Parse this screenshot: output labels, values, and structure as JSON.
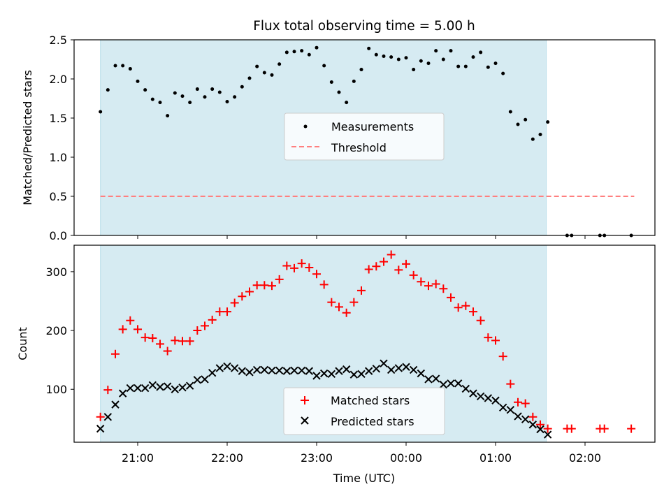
{
  "chart_data": [
    {
      "type": "scatter",
      "title": "Flux total observing time = 5.00 h",
      "ylabel": "Matched/Predicted stars",
      "ylim": [
        0,
        2.5
      ],
      "yticks": [
        "0.0",
        "0.5",
        "1.0",
        "1.5",
        "2.0",
        "2.5"
      ],
      "shaded_span": {
        "start": "20:35",
        "end": "01:34",
        "color": "#add8e6"
      },
      "threshold": {
        "name": "Threshold",
        "value": 0.5,
        "x_start": "20:35",
        "x_end": "02:33",
        "color": "#ff7f7f",
        "style": "dashed"
      },
      "legend": {
        "position": "center",
        "entries": [
          "Measurements",
          "Threshold"
        ]
      },
      "series": [
        {
          "name": "Measurements",
          "color": "#000000",
          "marker": "dot",
          "x": [
            "20:35",
            "20:40",
            "20:45",
            "20:50",
            "20:55",
            "21:00",
            "21:05",
            "21:10",
            "21:15",
            "21:20",
            "21:25",
            "21:30",
            "21:35",
            "21:40",
            "21:45",
            "21:50",
            "21:55",
            "22:00",
            "22:05",
            "22:10",
            "22:15",
            "22:20",
            "22:25",
            "22:30",
            "22:35",
            "22:40",
            "22:45",
            "22:50",
            "22:55",
            "23:00",
            "23:05",
            "23:10",
            "23:15",
            "23:20",
            "23:25",
            "23:30",
            "23:35",
            "23:40",
            "23:45",
            "23:50",
            "23:55",
            "00:00",
            "00:05",
            "00:10",
            "00:15",
            "00:20",
            "00:25",
            "00:30",
            "00:35",
            "00:40",
            "00:45",
            "00:50",
            "00:55",
            "01:00",
            "01:05",
            "01:10",
            "01:15",
            "01:20",
            "01:25",
            "01:30",
            "01:35",
            "01:48",
            "01:51",
            "02:10",
            "02:13",
            "02:31"
          ],
          "y": [
            1.58,
            1.86,
            2.17,
            2.17,
            2.13,
            1.97,
            1.86,
            1.74,
            1.7,
            1.53,
            1.82,
            1.78,
            1.7,
            1.87,
            1.77,
            1.87,
            1.83,
            1.71,
            1.77,
            1.9,
            2.01,
            2.16,
            2.08,
            2.05,
            2.19,
            2.34,
            2.35,
            2.36,
            2.31,
            2.4,
            2.17,
            1.96,
            1.83,
            1.7,
            1.97,
            2.12,
            2.39,
            2.31,
            2.29,
            2.28,
            2.25,
            2.27,
            2.12,
            2.23,
            2.2,
            2.36,
            2.25,
            2.36,
            2.16,
            2.16,
            2.28,
            2.34,
            2.15,
            2.2,
            2.07,
            1.58,
            1.42,
            1.48,
            1.23,
            1.29,
            1.45,
            0,
            0,
            0,
            0,
            0
          ]
        }
      ]
    },
    {
      "type": "scatter",
      "xlabel": "Time (UTC)",
      "ylabel": "Count",
      "ylim": [
        10,
        345
      ],
      "yticks": [
        "100",
        "200",
        "300"
      ],
      "xticks": [
        "21:00",
        "22:00",
        "23:00",
        "00:00",
        "01:00",
        "02:00"
      ],
      "shaded_span": {
        "start": "20:35",
        "end": "01:34",
        "color": "#add8e6"
      },
      "legend": {
        "position": "lower center",
        "entries": [
          "Matched stars",
          "Predicted stars"
        ]
      },
      "x": [
        "20:35",
        "20:40",
        "20:45",
        "20:50",
        "20:55",
        "21:00",
        "21:05",
        "21:10",
        "21:15",
        "21:20",
        "21:25",
        "21:30",
        "21:35",
        "21:40",
        "21:45",
        "21:50",
        "21:55",
        "22:00",
        "22:05",
        "22:10",
        "22:15",
        "22:20",
        "22:25",
        "22:30",
        "22:35",
        "22:40",
        "22:45",
        "22:50",
        "22:55",
        "23:00",
        "23:05",
        "23:10",
        "23:15",
        "23:20",
        "23:25",
        "23:30",
        "23:35",
        "23:40",
        "23:45",
        "23:50",
        "23:55",
        "00:00",
        "00:05",
        "00:10",
        "00:15",
        "00:20",
        "00:25",
        "00:30",
        "00:35",
        "00:40",
        "00:45",
        "00:50",
        "00:55",
        "01:00",
        "01:05",
        "01:10",
        "01:15",
        "01:20",
        "01:25",
        "01:30",
        "01:35",
        "01:48",
        "01:51",
        "02:10",
        "02:13",
        "02:31"
      ],
      "series": [
        {
          "name": "Matched stars",
          "color": "#ff0000",
          "marker": "plus",
          "values": [
            53,
            99,
            160,
            202,
            217,
            202,
            188,
            187,
            177,
            165,
            183,
            182,
            182,
            200,
            208,
            218,
            232,
            232,
            247,
            258,
            266,
            277,
            277,
            276,
            287,
            310,
            306,
            314,
            307,
            296,
            278,
            248,
            240,
            230,
            248,
            268,
            304,
            309,
            317,
            329,
            303,
            313,
            294,
            283,
            276,
            279,
            271,
            256,
            239,
            242,
            232,
            217,
            188,
            183,
            156,
            109,
            78,
            76,
            53,
            40,
            33,
            33,
            33,
            33,
            33,
            33
          ]
        },
        {
          "name": "Predicted stars",
          "color": "#000000",
          "marker": "x",
          "values": [
            33,
            53,
            74,
            93,
            102,
            102,
            102,
            107,
            104,
            105,
            100,
            103,
            106,
            116,
            117,
            128,
            136,
            139,
            136,
            131,
            129,
            133,
            133,
            132,
            132,
            131,
            132,
            132,
            131,
            123,
            127,
            126,
            131,
            134,
            125,
            126,
            131,
            135,
            144,
            133,
            136,
            138,
            133,
            127,
            117,
            118,
            108,
            110,
            110,
            101,
            93,
            88,
            85,
            81,
            69,
            65,
            54,
            49,
            40,
            32,
            23
          ]
        }
      ]
    }
  ]
}
